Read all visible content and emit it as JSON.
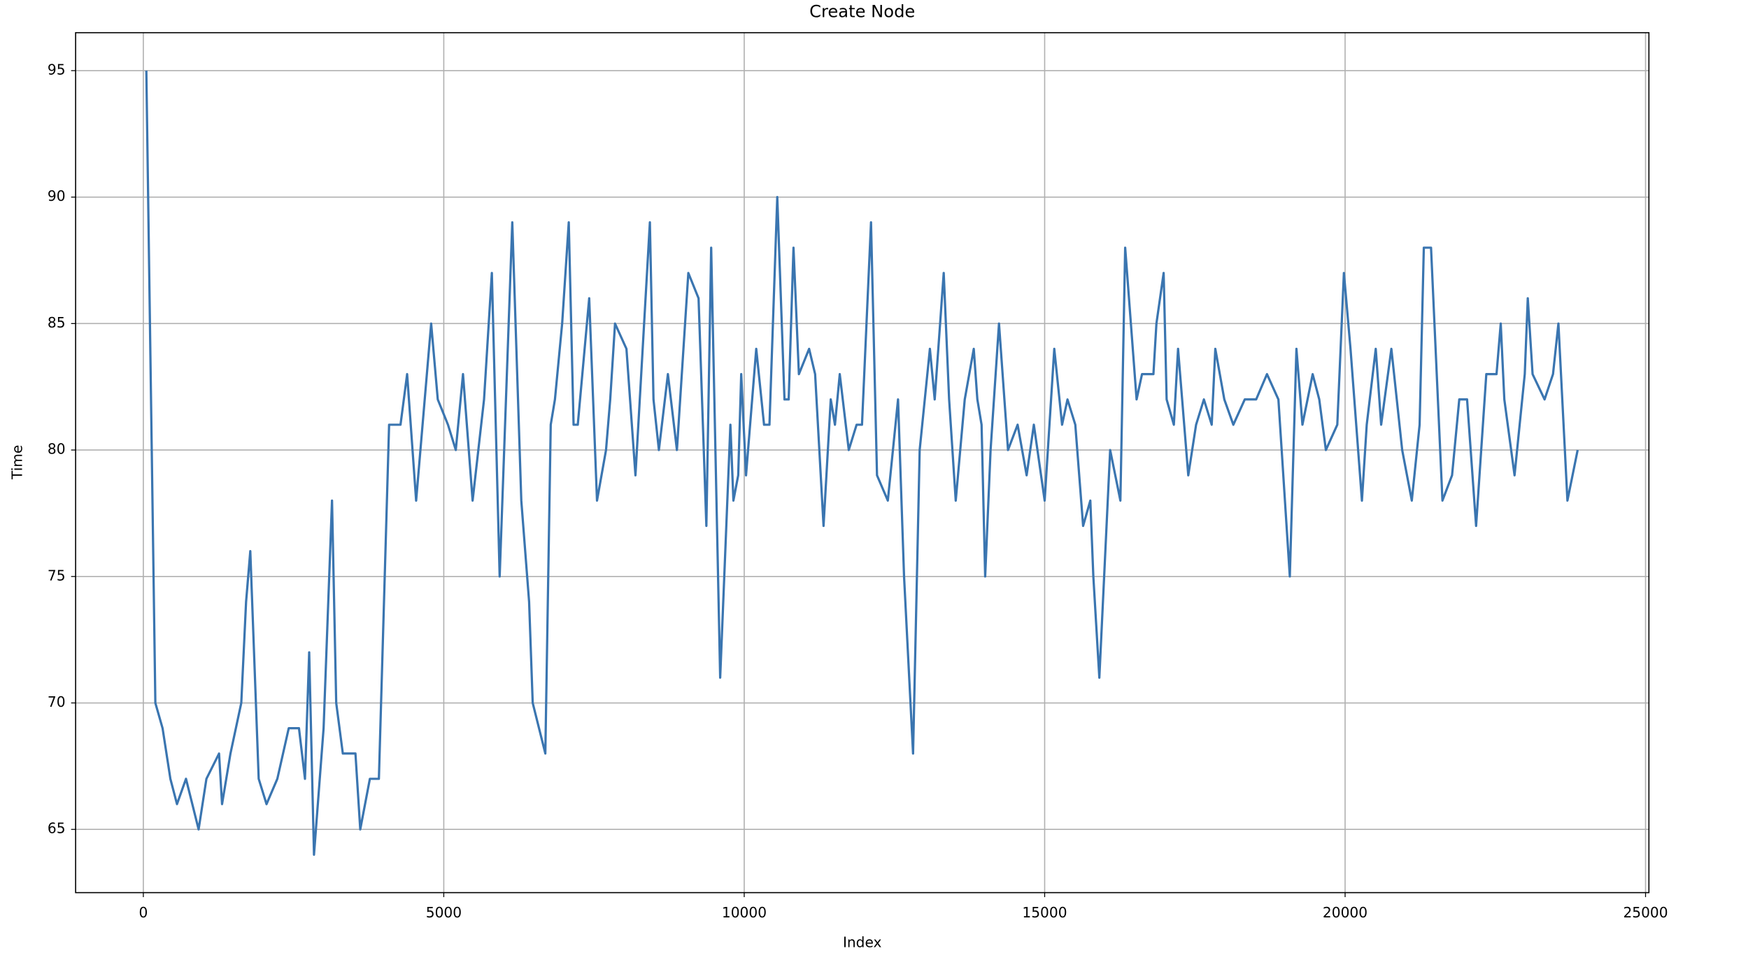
{
  "chart_data": {
    "type": "line",
    "title": "Create Node",
    "x_label": "Index",
    "y_label": "Time",
    "xlim": [
      -1127,
      25056
    ],
    "ylim": [
      62.5,
      96.5
    ],
    "xticks": [
      0,
      5000,
      10000,
      15000,
      20000,
      25000
    ],
    "yticks": [
      65,
      70,
      75,
      80,
      85,
      90,
      95
    ],
    "grid": true,
    "x": [
      50,
      200,
      320,
      450,
      560,
      710,
      920,
      1050,
      1260,
      1310,
      1450,
      1630,
      1710,
      1780,
      1920,
      2050,
      2230,
      2420,
      2590,
      2690,
      2760,
      2840,
      3000,
      3140,
      3210,
      3320,
      3530,
      3610,
      3770,
      3920,
      4090,
      4280,
      4390,
      4540,
      4790,
      4900,
      5070,
      5200,
      5320,
      5480,
      5670,
      5800,
      5930,
      6140,
      6290,
      6420,
      6480,
      6690,
      6780,
      6850,
      6970,
      7080,
      7160,
      7230,
      7420,
      7550,
      7700,
      7770,
      7850,
      8040,
      8190,
      8430,
      8490,
      8580,
      8730,
      8880,
      9070,
      9240,
      9370,
      9450,
      9600,
      9770,
      9820,
      9900,
      9950,
      10030,
      10200,
      10330,
      10420,
      10550,
      10670,
      10740,
      10820,
      10910,
      11080,
      11180,
      11250,
      11320,
      11440,
      11510,
      11590,
      11740,
      11870,
      11960,
      12110,
      12210,
      12390,
      12560,
      12660,
      12810,
      12920,
      13090,
      13170,
      13320,
      13410,
      13520,
      13670,
      13820,
      13880,
      13950,
      14010,
      14100,
      14240,
      14390,
      14550,
      14700,
      14820,
      15000,
      15160,
      15290,
      15380,
      15510,
      15640,
      15760,
      15810,
      15910,
      16090,
      16260,
      16340,
      16530,
      16620,
      16810,
      16860,
      16980,
      17030,
      17150,
      17220,
      17390,
      17520,
      17650,
      17780,
      17840,
      17990,
      18140,
      18330,
      18520,
      18700,
      18890,
      19080,
      19190,
      19290,
      19460,
      19570,
      19680,
      19870,
      19980,
      20090,
      20280,
      20360,
      20510,
      20600,
      20770,
      20950,
      21110,
      21240,
      21310,
      21430,
      21620,
      21780,
      21900,
      22030,
      22180,
      22350,
      22520,
      22590,
      22650,
      22820,
      22990,
      23040,
      23120,
      23320,
      23460,
      23550,
      23700,
      23870
    ],
    "series": [
      {
        "name": "Time",
        "color": "#3a75b0",
        "values": [
          95,
          70,
          69,
          67,
          66,
          67,
          65,
          67,
          68,
          66,
          68,
          70,
          74,
          76,
          67,
          66,
          67,
          69,
          69,
          67,
          72,
          64,
          69,
          78,
          70,
          68,
          68,
          65,
          67,
          67,
          81,
          81,
          83,
          78,
          85,
          82,
          81,
          80,
          83,
          78,
          82,
          87,
          75,
          89,
          78,
          74,
          70,
          68,
          81,
          82,
          85,
          89,
          81,
          81,
          86,
          78,
          80,
          82,
          85,
          84,
          79,
          89,
          82,
          80,
          83,
          80,
          87,
          86,
          77,
          88,
          71,
          81,
          78,
          79,
          83,
          79,
          84,
          81,
          81,
          90,
          82,
          82,
          88,
          83,
          84,
          83,
          80,
          77,
          82,
          81,
          83,
          80,
          81,
          81,
          89,
          79,
          78,
          82,
          75,
          68,
          80,
          84,
          82,
          87,
          82,
          78,
          82,
          84,
          82,
          81,
          75,
          80,
          85,
          80,
          81,
          79,
          81,
          78,
          84,
          81,
          82,
          81,
          77,
          78,
          75,
          71,
          80,
          78,
          88,
          82,
          83,
          83,
          85,
          87,
          82,
          81,
          84,
          79,
          81,
          82,
          81,
          84,
          82,
          81,
          82,
          82,
          83,
          82,
          75,
          84,
          81,
          83,
          82,
          80,
          81,
          87,
          84,
          78,
          81,
          84,
          81,
          84,
          80,
          78,
          81,
          88,
          88,
          78,
          79,
          82,
          82,
          77,
          83,
          83,
          85,
          82,
          79,
          83,
          86,
          83,
          82,
          83,
          85,
          78,
          80
        ]
      }
    ]
  }
}
